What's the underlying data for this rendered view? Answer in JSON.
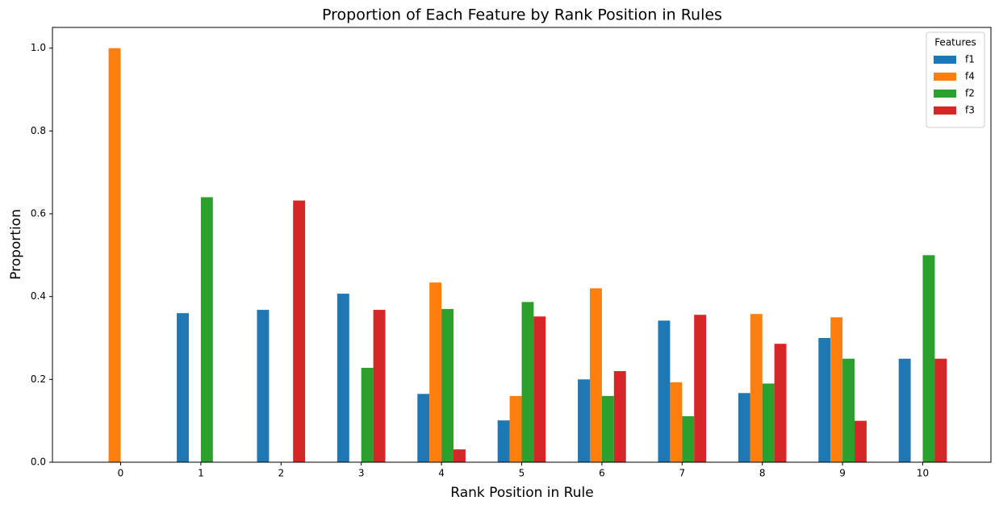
{
  "chart_data": {
    "type": "bar",
    "title": "Proportion of Each Feature by Rank Position in Rules",
    "xlabel": "Rank Position in Rule",
    "ylabel": "Proportion",
    "categories": [
      "0",
      "1",
      "2",
      "3",
      "4",
      "5",
      "6",
      "7",
      "8",
      "9",
      "10"
    ],
    "series": [
      {
        "name": "f1",
        "color": "#1f77b4",
        "values": [
          0,
          0.36,
          0.368,
          0.407,
          0.165,
          0.101,
          0.2,
          0.342,
          0.167,
          0.3,
          0.25
        ]
      },
      {
        "name": "f4",
        "color": "#ff7f0e",
        "values": [
          1.0,
          0,
          0,
          0,
          0.434,
          0.16,
          0.42,
          0.193,
          0.358,
          0.35,
          0
        ]
      },
      {
        "name": "f2",
        "color": "#2ca02c",
        "values": [
          0,
          0.64,
          0,
          0.228,
          0.37,
          0.387,
          0.16,
          0.111,
          0.19,
          0.25,
          0.5
        ]
      },
      {
        "name": "f3",
        "color": "#d62728",
        "values": [
          0,
          0,
          0.632,
          0.368,
          0.031,
          0.352,
          0.22,
          0.356,
          0.286,
          0.1,
          0.25
        ]
      }
    ],
    "ylim": [
      0,
      1.05
    ],
    "yticks": [
      {
        "value": 0,
        "label": "0.0"
      },
      {
        "value": 0.2,
        "label": "0.2"
      },
      {
        "value": 0.4,
        "label": "0.4"
      },
      {
        "value": 0.6,
        "label": "0.6"
      },
      {
        "value": 0.8,
        "label": "0.8"
      },
      {
        "value": 1.0,
        "label": "1.0"
      }
    ],
    "legend_title": "Features",
    "legend_position": "upper right"
  }
}
